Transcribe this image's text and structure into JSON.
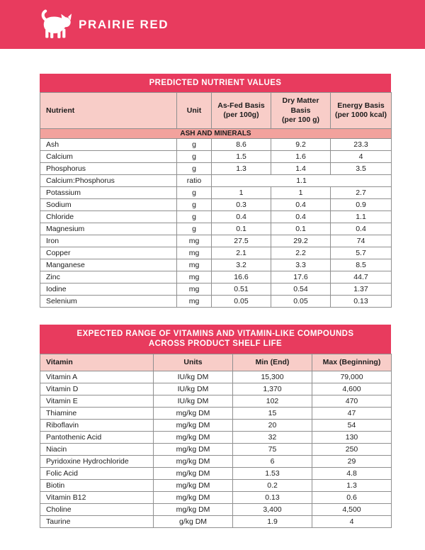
{
  "brand": {
    "name": "PRAIRIE RED",
    "logo_icon": "cat-logo-icon"
  },
  "colors": {
    "accent_pink": "#e83b5e",
    "column_header_bg": "#f8cdc8",
    "section_row_bg": "#f2a29d",
    "table_border": "#8f8f8f",
    "text": "#1d1d1d",
    "header_text": "#ffffff"
  },
  "nutrient_table": {
    "title": "PREDICTED NUTRIENT VALUES",
    "section_header": "ASH AND MINERALS",
    "columns": [
      "Nutrient",
      "Unit",
      "As-Fed Basis\n(per 100g)",
      "Dry Matter Basis\n(per 100 g)",
      "Energy Basis\n(per 1000 kcal)"
    ],
    "rows": [
      {
        "nutrient": "Ash",
        "unit": "g",
        "values": [
          "8.6",
          "9.2",
          "23.3"
        ]
      },
      {
        "nutrient": "Calcium",
        "unit": "g",
        "values": [
          "1.5",
          "1.6",
          "4"
        ]
      },
      {
        "nutrient": "Phosphorus",
        "unit": "g",
        "values": [
          "1.3",
          "1.4",
          "3.5"
        ]
      },
      {
        "nutrient": "Calcium:Phosphorus",
        "unit": "ratio",
        "values": [
          "1.1"
        ],
        "merged": true
      },
      {
        "nutrient": "Potassium",
        "unit": "g",
        "values": [
          "1",
          "1",
          "2.7"
        ]
      },
      {
        "nutrient": "Sodium",
        "unit": "g",
        "values": [
          "0.3",
          "0.4",
          "0.9"
        ]
      },
      {
        "nutrient": "Chloride",
        "unit": "g",
        "values": [
          "0.4",
          "0.4",
          "1.1"
        ]
      },
      {
        "nutrient": "Magnesium",
        "unit": "g",
        "values": [
          "0.1",
          "0.1",
          "0.4"
        ]
      },
      {
        "nutrient": "Iron",
        "unit": "mg",
        "values": [
          "27.5",
          "29.2",
          "74"
        ]
      },
      {
        "nutrient": "Copper",
        "unit": "mg",
        "values": [
          "2.1",
          "2.2",
          "5.7"
        ]
      },
      {
        "nutrient": "Manganese",
        "unit": "mg",
        "values": [
          "3.2",
          "3.3",
          "8.5"
        ]
      },
      {
        "nutrient": "Zinc",
        "unit": "mg",
        "values": [
          "16.6",
          "17.6",
          "44.7"
        ]
      },
      {
        "nutrient": "Iodine",
        "unit": "mg",
        "values": [
          "0.51",
          "0.54",
          "1.37"
        ]
      },
      {
        "nutrient": "Selenium",
        "unit": "mg",
        "values": [
          "0.05",
          "0.05",
          "0.13"
        ]
      }
    ]
  },
  "vitamin_table": {
    "title": "EXPECTED RANGE OF VITAMINS AND VITAMIN-LIKE COMPOUNDS\nACROSS PRODUCT SHELF LIFE",
    "columns": [
      "Vitamin",
      "Units",
      "Min (End)",
      "Max (Beginning)"
    ],
    "rows": [
      {
        "vitamin": "Vitamin A",
        "units": "IU/kg DM",
        "min": "15,300",
        "max": "79,000"
      },
      {
        "vitamin": "Vitamin D",
        "units": "IU/kg DM",
        "min": "1,370",
        "max": "4,600"
      },
      {
        "vitamin": "Vitamin E",
        "units": "IU/kg DM",
        "min": "102",
        "max": "470"
      },
      {
        "vitamin": "Thiamine",
        "units": "mg/kg DM",
        "min": "15",
        "max": "47"
      },
      {
        "vitamin": "Riboflavin",
        "units": "mg/kg DM",
        "min": "20",
        "max": "54"
      },
      {
        "vitamin": "Pantothenic Acid",
        "units": "mg/kg DM",
        "min": "32",
        "max": "130"
      },
      {
        "vitamin": "Niacin",
        "units": "mg/kg DM",
        "min": "75",
        "max": "250"
      },
      {
        "vitamin": "Pyridoxine Hydrochloride",
        "units": "mg/kg DM",
        "min": "6",
        "max": "29"
      },
      {
        "vitamin": "Folic Acid",
        "units": "mg/kg DM",
        "min": "1.53",
        "max": "4.8"
      },
      {
        "vitamin": "Biotin",
        "units": "mg/kg DM",
        "min": "0.2",
        "max": "1.3"
      },
      {
        "vitamin": "Vitamin B12",
        "units": "mg/kg DM",
        "min": "0.13",
        "max": "0.6"
      },
      {
        "vitamin": "Choline",
        "units": "mg/kg DM",
        "min": "3,400",
        "max": "4,500"
      },
      {
        "vitamin": "Taurine",
        "units": "g/kg DM",
        "min": "1.9",
        "max": "4"
      }
    ]
  }
}
